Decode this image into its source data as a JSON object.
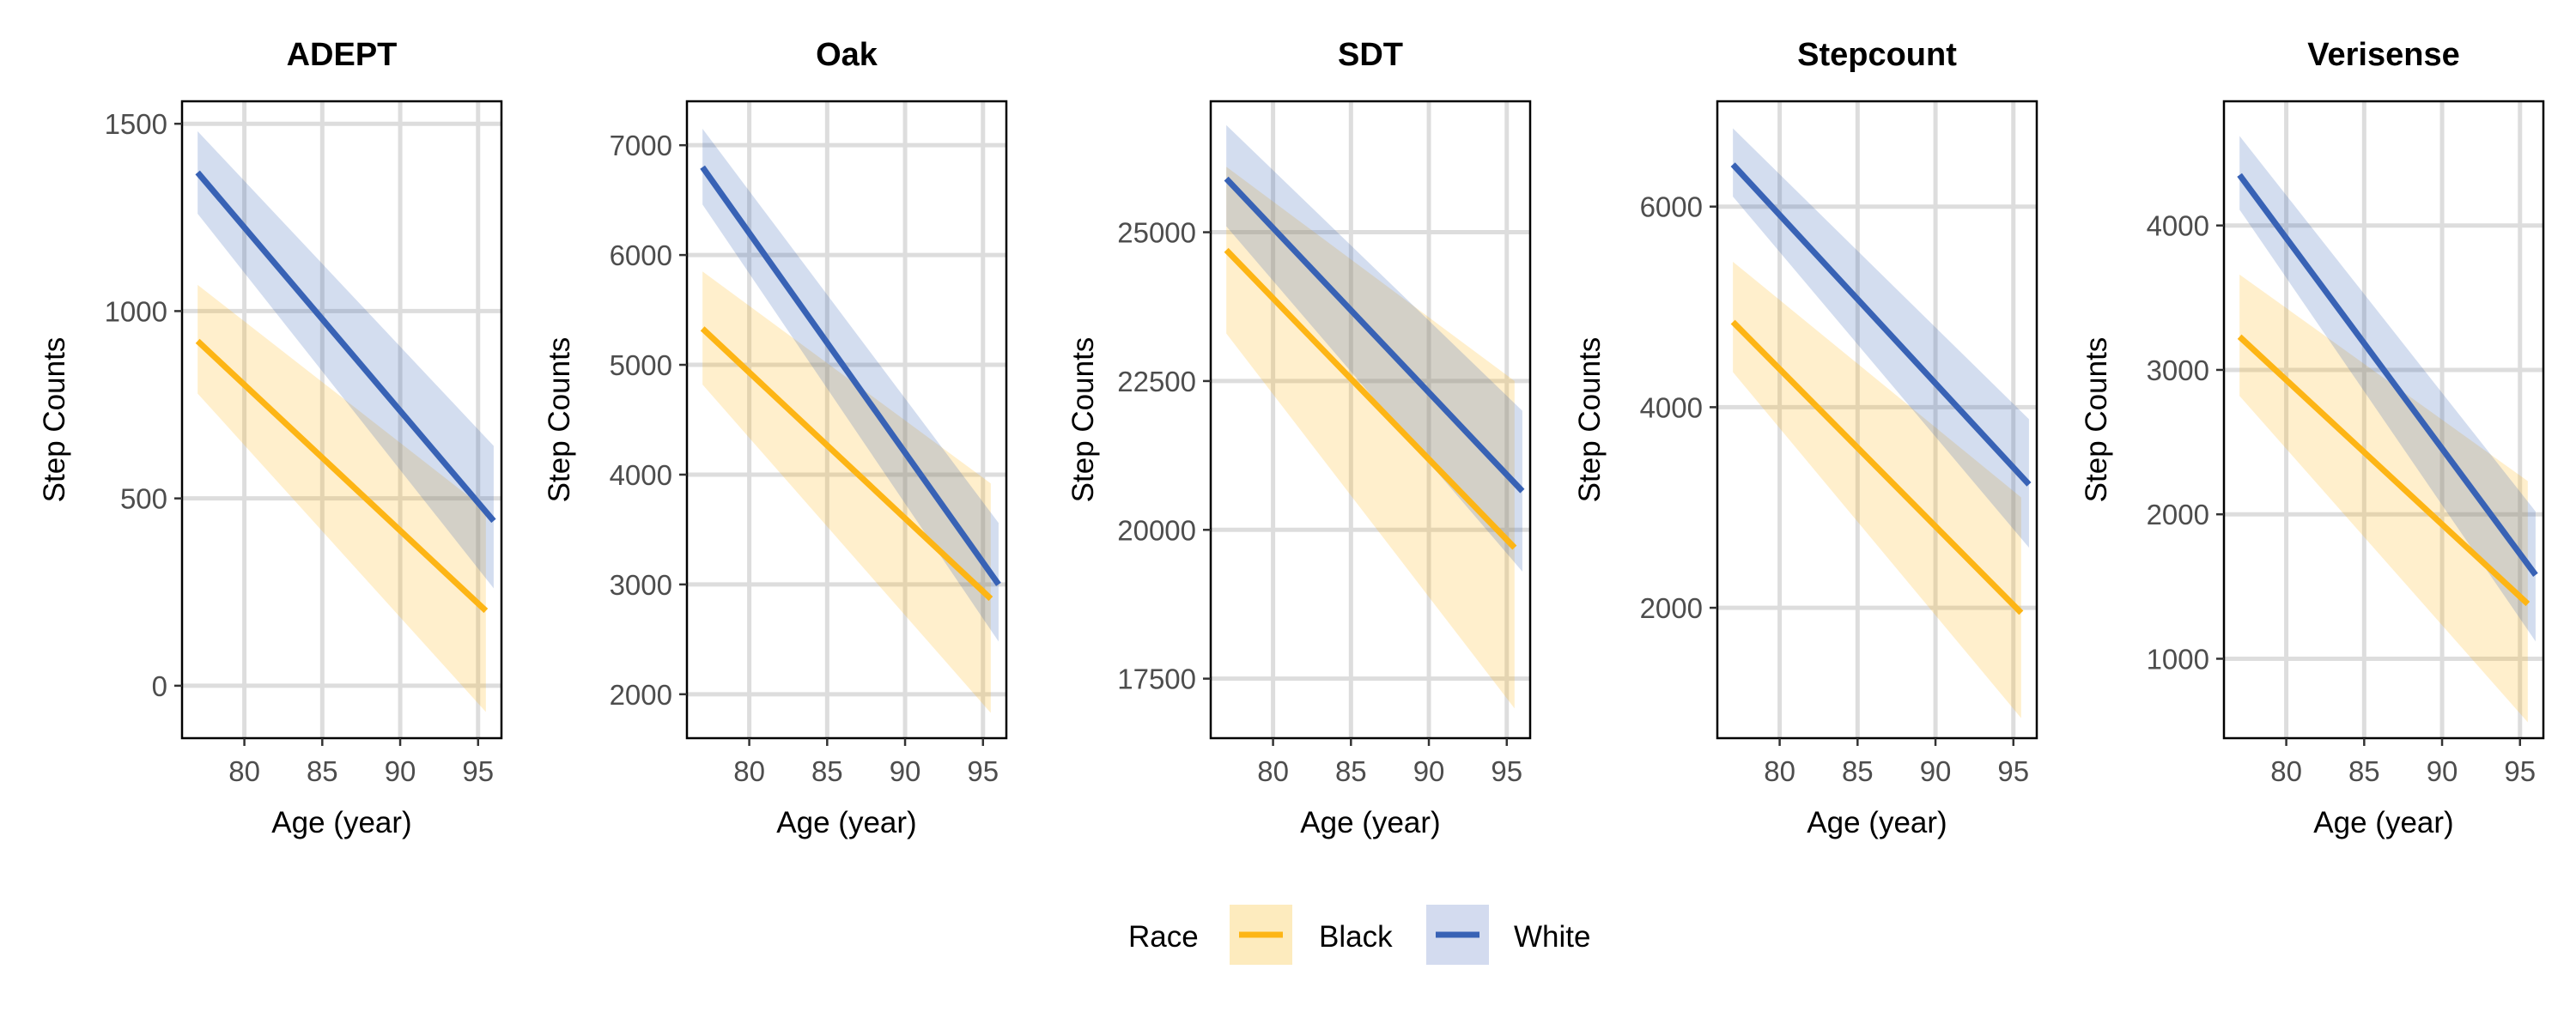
{
  "chart_data": [
    {
      "type": "line",
      "title": "ADEPT",
      "xlabel": "Age (year)",
      "ylabel": "Step Counts",
      "xlim": [
        76,
        96.5
      ],
      "ylim": [
        -140,
        1560
      ],
      "xticks": [
        80,
        85,
        90,
        95
      ],
      "yticks": [
        0,
        500,
        1000,
        1500
      ],
      "grid": true,
      "series": [
        {
          "name": "Black",
          "x": [
            77,
            95.5
          ],
          "y": [
            920,
            200
          ],
          "lower": [
            780,
            -70
          ],
          "upper": [
            1070,
            470
          ]
        },
        {
          "name": "White",
          "x": [
            77,
            96
          ],
          "y": [
            1370,
            440
          ],
          "lower": [
            1260,
            260
          ],
          "upper": [
            1480,
            640
          ]
        }
      ]
    },
    {
      "type": "line",
      "title": "Oak",
      "xlabel": "Age (year)",
      "ylabel": "Step Counts",
      "xlim": [
        76,
        96.5
      ],
      "ylim": [
        1600,
        7400
      ],
      "xticks": [
        80,
        85,
        90,
        95
      ],
      "yticks": [
        2000,
        3000,
        4000,
        5000,
        6000,
        7000
      ],
      "grid": true,
      "series": [
        {
          "name": "Black",
          "x": [
            77,
            95.5
          ],
          "y": [
            5330,
            2870
          ],
          "lower": [
            4820,
            1830
          ],
          "upper": [
            5850,
            3920
          ]
        },
        {
          "name": "White",
          "x": [
            77,
            96
          ],
          "y": [
            6800,
            3000
          ],
          "lower": [
            6460,
            2480
          ],
          "upper": [
            7150,
            3560
          ]
        }
      ]
    },
    {
      "type": "line",
      "title": "SDT",
      "xlabel": "Age (year)",
      "ylabel": "Step Counts",
      "xlim": [
        76,
        96.5
      ],
      "ylim": [
        16500,
        27200
      ],
      "xticks": [
        80,
        85,
        90,
        95
      ],
      "yticks": [
        17500,
        20000,
        22500,
        25000
      ],
      "grid": true,
      "series": [
        {
          "name": "Black",
          "x": [
            77,
            95.5
          ],
          "y": [
            24700,
            19700
          ],
          "lower": [
            23300,
            17000
          ],
          "upper": [
            26100,
            22500
          ]
        },
        {
          "name": "White",
          "x": [
            77,
            96
          ],
          "y": [
            25900,
            20650
          ],
          "lower": [
            25100,
            19300
          ],
          "upper": [
            26800,
            22000
          ]
        }
      ]
    },
    {
      "type": "line",
      "title": "Stepcount",
      "xlabel": "Age (year)",
      "ylabel": "Step Counts",
      "xlim": [
        76,
        96.5
      ],
      "ylim": [
        700,
        7050
      ],
      "xticks": [
        80,
        85,
        90,
        95
      ],
      "yticks": [
        2000,
        4000,
        6000
      ],
      "grid": true,
      "series": [
        {
          "name": "Black",
          "x": [
            77,
            95.5
          ],
          "y": [
            4850,
            1950
          ],
          "lower": [
            4350,
            900
          ],
          "upper": [
            5450,
            3100
          ]
        },
        {
          "name": "White",
          "x": [
            77,
            96
          ],
          "y": [
            6420,
            3230
          ],
          "lower": [
            6100,
            2600
          ],
          "upper": [
            6780,
            3880
          ]
        }
      ]
    },
    {
      "type": "line",
      "title": "Verisense",
      "xlabel": "Age (year)",
      "ylabel": "Step Counts",
      "xlim": [
        76,
        96.5
      ],
      "ylim": [
        450,
        4860
      ],
      "xticks": [
        80,
        85,
        90,
        95
      ],
      "yticks": [
        1000,
        2000,
        3000,
        4000
      ],
      "grid": true,
      "series": [
        {
          "name": "Black",
          "x": [
            77,
            95.5
          ],
          "y": [
            3230,
            1380
          ],
          "lower": [
            2820,
            560
          ],
          "upper": [
            3660,
            2230
          ]
        },
        {
          "name": "White",
          "x": [
            77,
            96
          ],
          "y": [
            4350,
            1580
          ],
          "lower": [
            4110,
            1120
          ],
          "upper": [
            4620,
            2020
          ]
        }
      ]
    }
  ],
  "legend": {
    "title": "Race",
    "position": "bottom",
    "items": [
      {
        "label": "Black",
        "color": "#FDB515",
        "fill": "#FDEBBE"
      },
      {
        "label": "White",
        "color": "#3862B5",
        "fill": "#D3DBEF"
      }
    ]
  },
  "colors": {
    "Black": "#FDB515",
    "White": "#3862B5",
    "Black_ribbon": "#FDB515",
    "White_ribbon": "#3862B5",
    "grid": "#DDDDDD",
    "frame": "#000000"
  }
}
